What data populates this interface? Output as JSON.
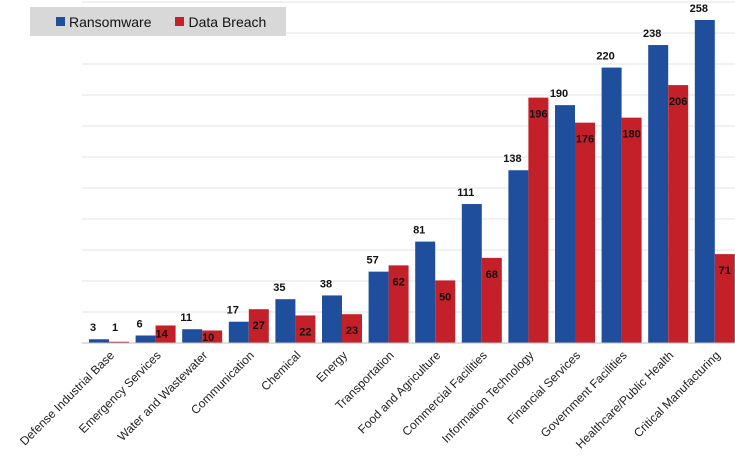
{
  "chart_data": {
    "type": "bar",
    "title": "",
    "xlabel": "",
    "ylabel": "",
    "ylim": [
      0,
      270
    ],
    "grid": true,
    "legend_position": "top-left",
    "categories": [
      "Defense Industrial Base",
      "Emergency Services",
      "Water and Wastewater",
      "Communication",
      "Chemical",
      "Energy",
      "Transportation",
      "Food and Agriculture",
      "Commercial Facilities",
      "Information Technology",
      "Financial Services",
      "Government Facilities",
      "Healthcare/Public Health",
      "Critical Manufacturing"
    ],
    "series": [
      {
        "name": "Ransomware",
        "color": "#1f4e9c",
        "values": [
          3,
          6,
          11,
          17,
          35,
          38,
          57,
          81,
          111,
          138,
          190,
          220,
          238,
          258
        ]
      },
      {
        "name": "Data Breach",
        "color": "#c3202a",
        "values": [
          1,
          14,
          10,
          27,
          22,
          23,
          62,
          50,
          68,
          196,
          176,
          180,
          206,
          71
        ]
      }
    ]
  }
}
